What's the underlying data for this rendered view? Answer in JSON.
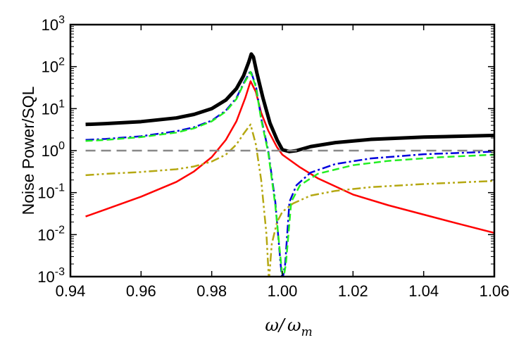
{
  "chart_data": {
    "type": "line",
    "title": "",
    "xlabel": {
      "base": "ω",
      "slash": "/",
      "denom": "ω",
      "denom_sub": "m"
    },
    "ylabel": "Noise Power/SQL",
    "xlim": [
      0.94,
      1.06
    ],
    "ylim_log10": [
      -3,
      3
    ],
    "yscale": "log",
    "x_ticks": [
      0.94,
      0.96,
      0.98,
      1.0,
      1.02,
      1.04,
      1.06
    ],
    "x_tick_labels": [
      "0.94",
      "0.96",
      "0.98",
      "1.00",
      "1.02",
      "1.04",
      "1.06"
    ],
    "y_ticks": [
      {
        "mant": "10",
        "exp": "-3"
      },
      {
        "mant": "10",
        "exp": "-2"
      },
      {
        "mant": "10",
        "exp": "-1"
      },
      {
        "mant": "10",
        "exp": "0"
      },
      {
        "mant": "10",
        "exp": "1"
      },
      {
        "mant": "10",
        "exp": "2"
      },
      {
        "mant": "10",
        "exp": "3"
      }
    ],
    "grid": false,
    "legend": "none",
    "series": [
      {
        "color": "#000000",
        "style": "solid",
        "width": 5,
        "points": [
          [
            0.9443,
            4.2
          ],
          [
            0.95,
            4.4
          ],
          [
            0.96,
            4.9
          ],
          [
            0.97,
            6.0
          ],
          [
            0.975,
            7.3
          ],
          [
            0.98,
            10
          ],
          [
            0.984,
            16
          ],
          [
            0.987,
            30
          ],
          [
            0.989,
            60
          ],
          [
            0.9905,
            130
          ],
          [
            0.9912,
            200
          ],
          [
            0.9918,
            170
          ],
          [
            0.9928,
            70
          ],
          [
            0.9945,
            18
          ],
          [
            0.9965,
            4.5
          ],
          [
            0.9985,
            1.8
          ],
          [
            1.0,
            1.05
          ],
          [
            1.002,
            0.95
          ],
          [
            1.004,
            1.0
          ],
          [
            1.008,
            1.25
          ],
          [
            1.015,
            1.55
          ],
          [
            1.025,
            1.85
          ],
          [
            1.04,
            2.1
          ],
          [
            1.06,
            2.3
          ]
        ]
      },
      {
        "color": "#ff0000",
        "style": "solid",
        "width": 2.5,
        "points": [
          [
            0.9443,
            0.027
          ],
          [
            0.95,
            0.04
          ],
          [
            0.96,
            0.08
          ],
          [
            0.97,
            0.18
          ],
          [
            0.975,
            0.32
          ],
          [
            0.98,
            0.7
          ],
          [
            0.984,
            1.8
          ],
          [
            0.987,
            5
          ],
          [
            0.9895,
            18
          ],
          [
            0.991,
            45
          ],
          [
            0.9925,
            25
          ],
          [
            0.994,
            8
          ],
          [
            0.996,
            3
          ],
          [
            0.9985,
            1.2
          ],
          [
            1.0,
            0.8
          ],
          [
            1.005,
            0.4
          ],
          [
            1.01,
            0.22
          ],
          [
            1.02,
            0.09
          ],
          [
            1.03,
            0.05
          ],
          [
            1.04,
            0.03
          ],
          [
            1.05,
            0.018
          ],
          [
            1.06,
            0.011
          ]
        ]
      },
      {
        "color": "#0000dd",
        "style": "dashdot",
        "width": 2.5,
        "points": [
          [
            0.9443,
            1.8
          ],
          [
            0.95,
            1.9
          ],
          [
            0.96,
            2.2
          ],
          [
            0.97,
            2.9
          ],
          [
            0.975,
            3.6
          ],
          [
            0.98,
            5.2
          ],
          [
            0.984,
            9
          ],
          [
            0.987,
            18
          ],
          [
            0.989,
            40
          ],
          [
            0.991,
            80
          ],
          [
            0.9925,
            35
          ],
          [
            0.994,
            6
          ],
          [
            0.996,
            1.0
          ],
          [
            0.998,
            0.06
          ],
          [
            0.9995,
            0.002
          ],
          [
            1.0,
            0.0008
          ],
          [
            1.0008,
            0.002
          ],
          [
            1.002,
            0.06
          ],
          [
            1.004,
            0.15
          ],
          [
            1.008,
            0.3
          ],
          [
            1.015,
            0.48
          ],
          [
            1.025,
            0.65
          ],
          [
            1.04,
            0.82
          ],
          [
            1.06,
            0.95
          ]
        ]
      },
      {
        "color": "#22ee22",
        "style": "dashed",
        "width": 2.5,
        "points": [
          [
            0.9443,
            1.7
          ],
          [
            0.95,
            1.8
          ],
          [
            0.96,
            2.1
          ],
          [
            0.97,
            2.7
          ],
          [
            0.975,
            3.4
          ],
          [
            0.98,
            5
          ],
          [
            0.984,
            8.5
          ],
          [
            0.987,
            17
          ],
          [
            0.989,
            38
          ],
          [
            0.991,
            75
          ],
          [
            0.9925,
            33
          ],
          [
            0.994,
            5.5
          ],
          [
            0.996,
            0.9
          ],
          [
            0.998,
            0.05
          ],
          [
            0.9997,
            0.0018
          ],
          [
            1.0002,
            0.0008
          ],
          [
            1.001,
            0.002
          ],
          [
            1.0025,
            0.06
          ],
          [
            1.005,
            0.15
          ],
          [
            1.01,
            0.28
          ],
          [
            1.02,
            0.45
          ],
          [
            1.03,
            0.57
          ],
          [
            1.045,
            0.7
          ],
          [
            1.06,
            0.8
          ]
        ]
      },
      {
        "color": "#b5a812",
        "style": "dashdotdot",
        "width": 2.5,
        "points": [
          [
            0.9443,
            0.26
          ],
          [
            0.95,
            0.28
          ],
          [
            0.96,
            0.31
          ],
          [
            0.97,
            0.36
          ],
          [
            0.975,
            0.42
          ],
          [
            0.98,
            0.55
          ],
          [
            0.984,
            0.8
          ],
          [
            0.987,
            1.4
          ],
          [
            0.989,
            2.5
          ],
          [
            0.991,
            4.2
          ],
          [
            0.9925,
            1.4
          ],
          [
            0.994,
            0.2
          ],
          [
            0.9955,
            0.01
          ],
          [
            0.9962,
            0.0008
          ],
          [
            0.997,
            0.006
          ],
          [
            0.9985,
            0.02
          ],
          [
            1.0,
            0.035
          ],
          [
            1.003,
            0.055
          ],
          [
            1.008,
            0.085
          ],
          [
            1.015,
            0.11
          ],
          [
            1.025,
            0.135
          ],
          [
            1.04,
            0.16
          ],
          [
            1.06,
            0.19
          ]
        ]
      },
      {
        "color": "#888888",
        "style": "longdash",
        "width": 2.5,
        "points": [
          [
            0.9443,
            1.0
          ],
          [
            1.06,
            1.0
          ]
        ]
      }
    ]
  }
}
